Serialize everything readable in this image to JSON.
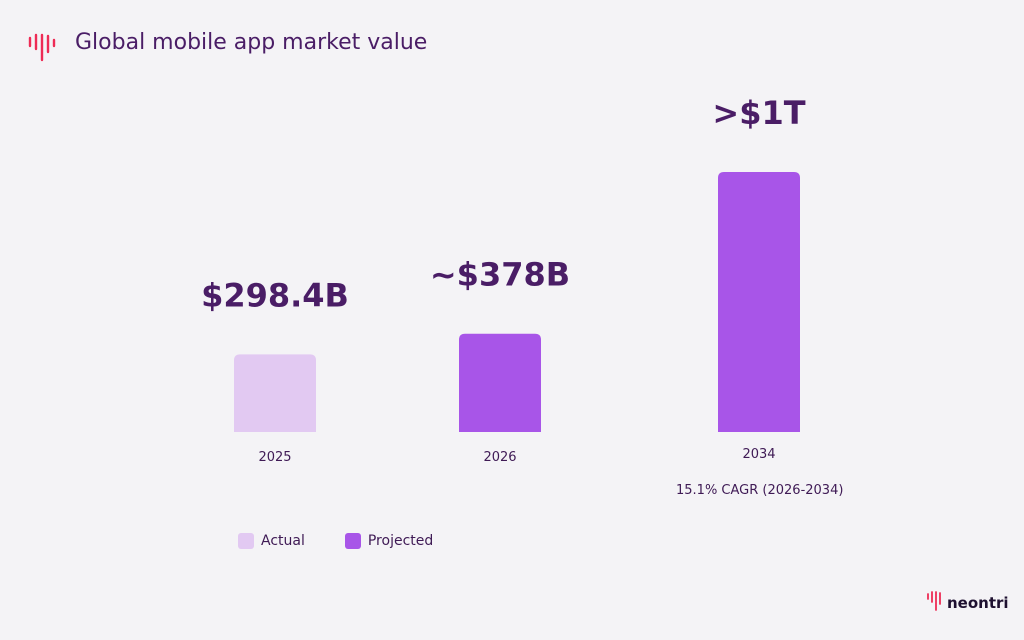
{
  "chart_data": {
    "type": "bar",
    "title": "Global mobile app market value",
    "categories": [
      "2025",
      "2026",
      "2034"
    ],
    "values": [
      298.4,
      378,
      1000
    ],
    "unit": "billion USD",
    "data_labels": [
      "$298.4B",
      "~$378B",
      ">$1T"
    ],
    "kinds": [
      "Actual",
      "Projected",
      "Projected"
    ],
    "legend": [
      {
        "name": "Actual",
        "color": "#e2c9f2"
      },
      {
        "name": "Projected",
        "color": "#a855e8"
      }
    ],
    "legend_position": "bottom-left",
    "annotation": "15.1% CAGR (2026-2034)",
    "grid": false
  },
  "brand": {
    "name": "neontri",
    "accent": "#ee2b55",
    "text_color": "#3f1a55"
  }
}
